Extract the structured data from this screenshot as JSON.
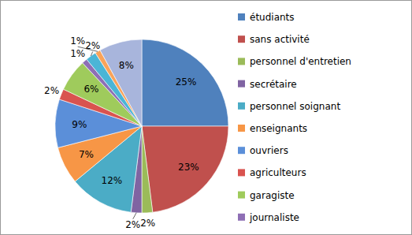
{
  "chart_data": {
    "type": "pie",
    "categories": [
      "étudiants",
      "sans activité",
      "personnel d'entretien",
      "secrétaire",
      "personnel soignant",
      "enseignants",
      "ouvriers",
      "agriculteurs",
      "garagiste",
      "journaliste",
      null,
      null,
      null
    ],
    "values": [
      25,
      23,
      2,
      2,
      12,
      7,
      9,
      2,
      6,
      1,
      2,
      1,
      8
    ],
    "value_labels": [
      "25%",
      "23%",
      "2%",
      "2%",
      "12%",
      "7%",
      "9%",
      "2%",
      "6%",
      "1%",
      "2%",
      "1%",
      "8%"
    ],
    "colors": [
      "#4f81bd",
      "#c0504d",
      "#9bbb59",
      "#8064a2",
      "#4bacc6",
      "#f79646",
      "#5b8fd9",
      "#d9534f",
      "#9fcb5c",
      "#8e6fb5",
      "#4bb5d6",
      "#f9a35a",
      "#a8b5dc"
    ],
    "data_labels": true,
    "legend": "right"
  }
}
